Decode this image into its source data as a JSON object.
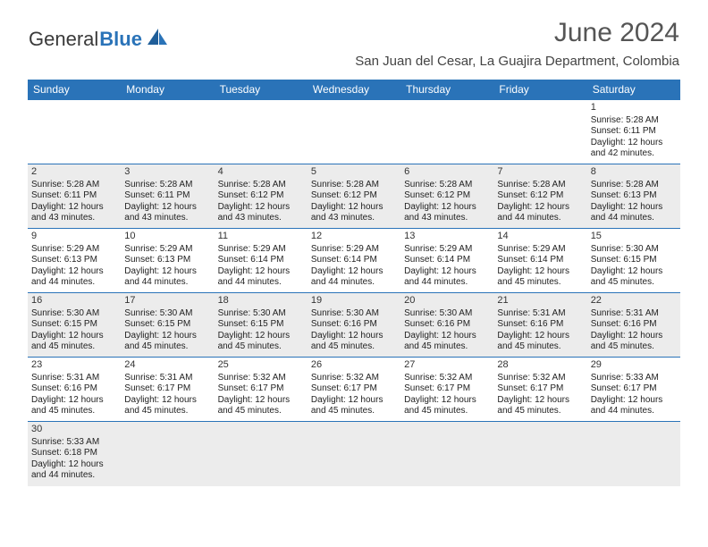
{
  "brand": {
    "part1": "General",
    "part2": "Blue"
  },
  "title": "June 2024",
  "location": "San Juan del Cesar, La Guajira Department, Colombia",
  "colors": {
    "accent": "#2a73b8",
    "shaded": "#ececec",
    "text": "#222222"
  },
  "weekdays": [
    "Sunday",
    "Monday",
    "Tuesday",
    "Wednesday",
    "Thursday",
    "Friday",
    "Saturday"
  ],
  "labels": {
    "sunrise": "Sunrise:",
    "sunset": "Sunset:",
    "daylight": "Daylight:",
    "hours": "hours",
    "and": "and",
    "minutes": "minutes."
  },
  "grid": [
    [
      null,
      null,
      null,
      null,
      null,
      null,
      {
        "d": "1",
        "sr": "5:28 AM",
        "ss": "6:11 PM",
        "dh": "12",
        "dm": "42"
      }
    ],
    [
      {
        "d": "2",
        "sr": "5:28 AM",
        "ss": "6:11 PM",
        "dh": "12",
        "dm": "43"
      },
      {
        "d": "3",
        "sr": "5:28 AM",
        "ss": "6:11 PM",
        "dh": "12",
        "dm": "43"
      },
      {
        "d": "4",
        "sr": "5:28 AM",
        "ss": "6:12 PM",
        "dh": "12",
        "dm": "43"
      },
      {
        "d": "5",
        "sr": "5:28 AM",
        "ss": "6:12 PM",
        "dh": "12",
        "dm": "43"
      },
      {
        "d": "6",
        "sr": "5:28 AM",
        "ss": "6:12 PM",
        "dh": "12",
        "dm": "43"
      },
      {
        "d": "7",
        "sr": "5:28 AM",
        "ss": "6:12 PM",
        "dh": "12",
        "dm": "44"
      },
      {
        "d": "8",
        "sr": "5:28 AM",
        "ss": "6:13 PM",
        "dh": "12",
        "dm": "44"
      }
    ],
    [
      {
        "d": "9",
        "sr": "5:29 AM",
        "ss": "6:13 PM",
        "dh": "12",
        "dm": "44"
      },
      {
        "d": "10",
        "sr": "5:29 AM",
        "ss": "6:13 PM",
        "dh": "12",
        "dm": "44"
      },
      {
        "d": "11",
        "sr": "5:29 AM",
        "ss": "6:14 PM",
        "dh": "12",
        "dm": "44"
      },
      {
        "d": "12",
        "sr": "5:29 AM",
        "ss": "6:14 PM",
        "dh": "12",
        "dm": "44"
      },
      {
        "d": "13",
        "sr": "5:29 AM",
        "ss": "6:14 PM",
        "dh": "12",
        "dm": "44"
      },
      {
        "d": "14",
        "sr": "5:29 AM",
        "ss": "6:14 PM",
        "dh": "12",
        "dm": "45"
      },
      {
        "d": "15",
        "sr": "5:30 AM",
        "ss": "6:15 PM",
        "dh": "12",
        "dm": "45"
      }
    ],
    [
      {
        "d": "16",
        "sr": "5:30 AM",
        "ss": "6:15 PM",
        "dh": "12",
        "dm": "45"
      },
      {
        "d": "17",
        "sr": "5:30 AM",
        "ss": "6:15 PM",
        "dh": "12",
        "dm": "45"
      },
      {
        "d": "18",
        "sr": "5:30 AM",
        "ss": "6:15 PM",
        "dh": "12",
        "dm": "45"
      },
      {
        "d": "19",
        "sr": "5:30 AM",
        "ss": "6:16 PM",
        "dh": "12",
        "dm": "45"
      },
      {
        "d": "20",
        "sr": "5:30 AM",
        "ss": "6:16 PM",
        "dh": "12",
        "dm": "45"
      },
      {
        "d": "21",
        "sr": "5:31 AM",
        "ss": "6:16 PM",
        "dh": "12",
        "dm": "45"
      },
      {
        "d": "22",
        "sr": "5:31 AM",
        "ss": "6:16 PM",
        "dh": "12",
        "dm": "45"
      }
    ],
    [
      {
        "d": "23",
        "sr": "5:31 AM",
        "ss": "6:16 PM",
        "dh": "12",
        "dm": "45"
      },
      {
        "d": "24",
        "sr": "5:31 AM",
        "ss": "6:17 PM",
        "dh": "12",
        "dm": "45"
      },
      {
        "d": "25",
        "sr": "5:32 AM",
        "ss": "6:17 PM",
        "dh": "12",
        "dm": "45"
      },
      {
        "d": "26",
        "sr": "5:32 AM",
        "ss": "6:17 PM",
        "dh": "12",
        "dm": "45"
      },
      {
        "d": "27",
        "sr": "5:32 AM",
        "ss": "6:17 PM",
        "dh": "12",
        "dm": "45"
      },
      {
        "d": "28",
        "sr": "5:32 AM",
        "ss": "6:17 PM",
        "dh": "12",
        "dm": "45"
      },
      {
        "d": "29",
        "sr": "5:33 AM",
        "ss": "6:17 PM",
        "dh": "12",
        "dm": "44"
      }
    ],
    [
      {
        "d": "30",
        "sr": "5:33 AM",
        "ss": "6:18 PM",
        "dh": "12",
        "dm": "44"
      },
      null,
      null,
      null,
      null,
      null,
      null
    ]
  ]
}
